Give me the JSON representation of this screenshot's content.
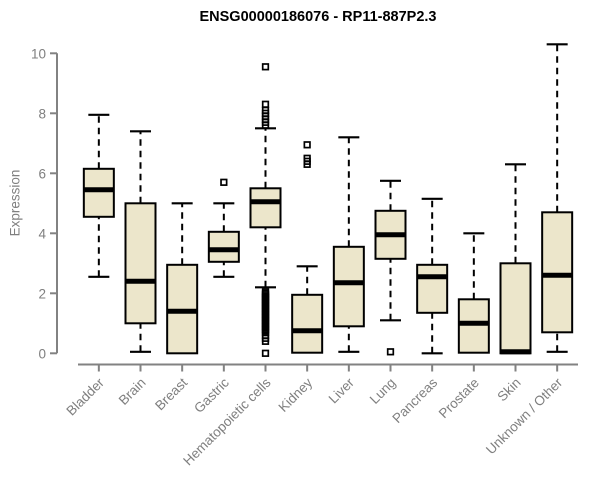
{
  "chart": {
    "colors": {
      "box_fill": "#ECE6CB",
      "box_border": "#000000",
      "median": "#000000",
      "axis": "#828282",
      "label": "#7f7f7f",
      "title": "#000000",
      "background": "#ffffff"
    }
  },
  "chart_data": {
    "type": "boxplot",
    "title": "ENSG00000186076 - RP11-887P2.3",
    "xlabel": "",
    "ylabel": "Expression",
    "ylim": [
      0,
      10
    ],
    "yticks": [
      0,
      2,
      4,
      6,
      8,
      10
    ],
    "grid": false,
    "legend": "none",
    "categories": [
      "Bladder",
      "Brain",
      "Breast",
      "Gastric",
      "Hematopoietic cells",
      "Kidney",
      "Liver",
      "Lung",
      "Pancreas",
      "Prostate",
      "Skin",
      "Unknown / Other"
    ],
    "boxes": [
      {
        "category": "Bladder",
        "low": 2.55,
        "q1": 4.55,
        "median": 5.45,
        "q3": 6.15,
        "high": 7.95,
        "outliers": []
      },
      {
        "category": "Brain",
        "low": 0.05,
        "q1": 1.0,
        "median": 2.4,
        "q3": 5.0,
        "high": 7.4,
        "outliers": []
      },
      {
        "category": "Breast",
        "low": 0.0,
        "q1": 0.0,
        "median": 1.4,
        "q3": 2.95,
        "high": 5.0,
        "outliers": []
      },
      {
        "category": "Gastric",
        "low": 2.55,
        "q1": 3.05,
        "median": 3.45,
        "q3": 4.05,
        "high": 5.0,
        "outliers": [
          5.7
        ]
      },
      {
        "category": "Hematopoietic cells",
        "low": 2.2,
        "q1": 4.2,
        "median": 5.05,
        "q3": 5.5,
        "high": 7.5,
        "outliers": [
          9.55,
          8.3,
          8.1,
          8.0,
          7.9,
          7.8,
          7.7,
          7.6,
          2.05,
          2.0,
          1.95,
          1.9,
          1.85,
          1.8,
          1.75,
          1.7,
          1.65,
          1.6,
          1.55,
          1.5,
          1.45,
          1.4,
          1.35,
          1.3,
          1.25,
          1.2,
          1.15,
          1.1,
          1.05,
          1.0,
          0.95,
          0.9,
          0.85,
          0.8,
          0.75,
          0.7,
          0.6,
          0.5,
          0.4,
          0.0
        ]
      },
      {
        "category": "Kidney",
        "low": 0.02,
        "q1": 0.02,
        "median": 0.75,
        "q3": 1.95,
        "high": 2.9,
        "outliers": [
          6.95,
          6.5,
          6.4,
          6.3
        ]
      },
      {
        "category": "Liver",
        "low": 0.05,
        "q1": 0.9,
        "median": 2.35,
        "q3": 3.55,
        "high": 7.2,
        "outliers": []
      },
      {
        "category": "Lung",
        "low": 1.1,
        "q1": 3.15,
        "median": 3.95,
        "q3": 4.75,
        "high": 5.75,
        "outliers": [
          0.05
        ]
      },
      {
        "category": "Pancreas",
        "low": 0.0,
        "q1": 1.35,
        "median": 2.55,
        "q3": 2.95,
        "high": 5.15,
        "outliers": []
      },
      {
        "category": "Prostate",
        "low": 0.02,
        "q1": 0.02,
        "median": 1.0,
        "q3": 1.8,
        "high": 4.0,
        "outliers": []
      },
      {
        "category": "Skin",
        "low": 0.0,
        "q1": 0.0,
        "median": 0.05,
        "q3": 3.0,
        "high": 6.3,
        "outliers": []
      },
      {
        "category": "Unknown / Other",
        "low": 0.05,
        "q1": 0.7,
        "median": 2.6,
        "q3": 4.7,
        "high": 10.3,
        "outliers": []
      }
    ]
  }
}
